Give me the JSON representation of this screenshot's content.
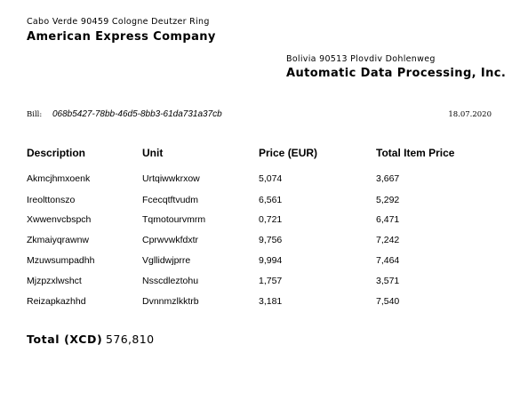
{
  "sender": {
    "address": "Cabo Verde 90459 Cologne Deutzer Ring",
    "name": "American Express Company"
  },
  "recipient": {
    "address": "Bolivia 90513 Plovdiv Dohlenweg",
    "name": "Automatic Data Processing, Inc."
  },
  "bill": {
    "label": "Bill:",
    "id": "068b5427-78bb-46d5-8bb3-61da731a37cb",
    "date": "18.07.2020"
  },
  "table": {
    "headers": [
      "Description",
      "Unit",
      "Price (EUR)",
      "Total Item Price"
    ],
    "rows": [
      [
        "Akmcjhmxoenk",
        "Urtqiwwkrxow",
        "5,074",
        "3,667"
      ],
      [
        "Ireolttonszo",
        "Fcecqtftvudm",
        "6,561",
        "5,292"
      ],
      [
        "Xwwenvcbspch",
        "Tqmotourvmrm",
        "0,721",
        "6,471"
      ],
      [
        "Zkmaiyqrawnw",
        "Cprwvwkfdxtr",
        "9,756",
        "7,242"
      ],
      [
        "Mzuwsumpadhh",
        "Vgllidwjprre",
        "9,994",
        "7,464"
      ],
      [
        "Mjzpzxlwshct",
        "Nsscdleztohu",
        "1,757",
        "3,571"
      ],
      [
        "Reizapkazhhd",
        "Dvnnmzlkktrb",
        "3,181",
        "7,540"
      ]
    ]
  },
  "total": {
    "label": "Total (XCD)",
    "value": "576,810"
  }
}
